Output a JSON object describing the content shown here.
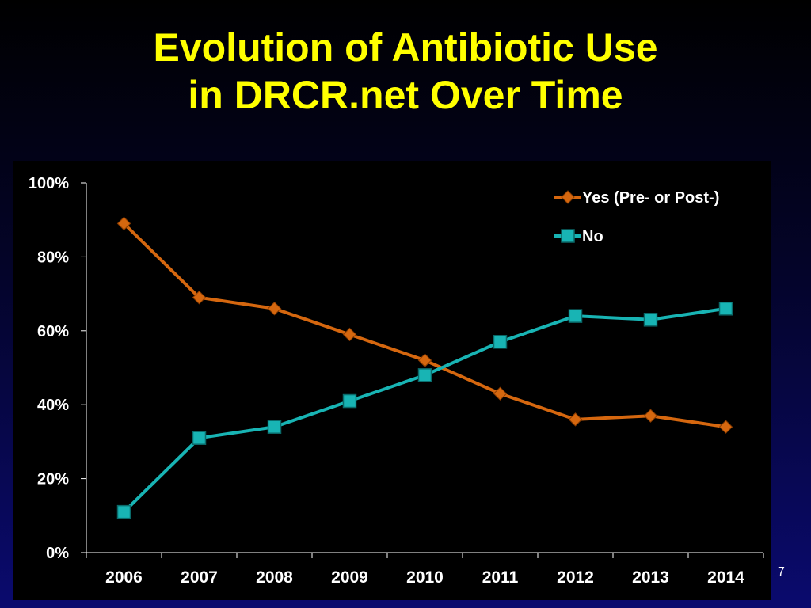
{
  "slide": {
    "title_line1": "Evolution of Antibiotic Use",
    "title_line2": "in DRCR.net Over Time",
    "page_number": "7"
  },
  "colors": {
    "title": "#ffff00",
    "series_yes": "#d5670f",
    "series_no": "#18b4b4",
    "axis_text": "#ffffff"
  },
  "chart_data": {
    "type": "line",
    "title": "",
    "xlabel": "",
    "ylabel": "",
    "categories": [
      "2006",
      "2007",
      "2008",
      "2009",
      "2010",
      "2011",
      "2012",
      "2013",
      "2014"
    ],
    "ylim": [
      0,
      100
    ],
    "yticks": [
      0,
      20,
      40,
      60,
      80,
      100
    ],
    "ytick_labels": [
      "0%",
      "20%",
      "40%",
      "60%",
      "80%",
      "100%"
    ],
    "grid": false,
    "legend_position": "top-right",
    "series": [
      {
        "name": "Yes (Pre- or Post-)",
        "marker": "diamond",
        "color": "#d5670f",
        "values": [
          89,
          69,
          66,
          59,
          52,
          43,
          36,
          37,
          34
        ]
      },
      {
        "name": "No",
        "marker": "square",
        "color": "#18b4b4",
        "values": [
          11,
          31,
          34,
          41,
          48,
          57,
          64,
          63,
          66
        ]
      }
    ]
  }
}
